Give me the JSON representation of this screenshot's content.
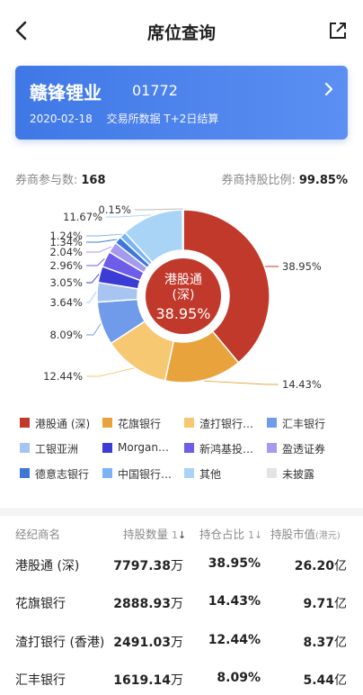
{
  "header": {
    "title": "席位查询"
  },
  "stock": {
    "name": "赣锋锂业",
    "code": "01772",
    "date": "2020-02-18",
    "note": "交易所数据 T+2日结算"
  },
  "stats": {
    "brokers_label": "券商参与数:",
    "brokers_value": "168",
    "ratio_label": "券商持股比例:",
    "ratio_value": "99.85%"
  },
  "chart_data": {
    "type": "pie",
    "title": "",
    "center_label": "港股通\n(深)",
    "center_value": "38.95%",
    "categories": [
      "港股通 (深)",
      "花旗银行",
      "渣打银行 (香港)",
      "汇丰银行",
      "工银亚洲",
      "Morgan…",
      "新鸿基投…",
      "盈透证券",
      "德意志银行",
      "中国银行…",
      "其他",
      "未披露"
    ],
    "values": [
      38.95,
      14.43,
      12.44,
      8.09,
      3.64,
      3.05,
      2.96,
      2.04,
      1.34,
      1.24,
      11.67,
      0.15
    ],
    "labels": [
      "38.95%",
      "14.43%",
      "12.44%",
      "8.09%",
      "3.64%",
      "3.05%",
      "2.96%",
      "2.04%",
      "1.34%",
      "1.24%",
      "11.67%",
      "0.15%"
    ],
    "colors": [
      "#c0392b",
      "#e8a33d",
      "#f5c871",
      "#6f9bea",
      "#a8c4f1",
      "#3b3bd6",
      "#6e5de8",
      "#a49af0",
      "#3d78d8",
      "#7db3f5",
      "#a9d4f6",
      "#e4e4e4"
    ]
  },
  "legend": {
    "items": [
      {
        "label": "港股通 (深)",
        "color": "#c0392b"
      },
      {
        "label": "花旗银行",
        "color": "#e8a33d"
      },
      {
        "label": "渣打银行…",
        "color": "#f5c871"
      },
      {
        "label": "汇丰银行",
        "color": "#6f9bea"
      },
      {
        "label": "工银亚洲",
        "color": "#a8c4f1"
      },
      {
        "label": "Morgan…",
        "color": "#3b3bd6"
      },
      {
        "label": "新鸿基投…",
        "color": "#6e5de8"
      },
      {
        "label": "盈透证券",
        "color": "#a49af0"
      },
      {
        "label": "德意志银行",
        "color": "#3d78d8"
      },
      {
        "label": "中国银行…",
        "color": "#7db3f5"
      },
      {
        "label": "其他",
        "color": "#a9d4f6"
      },
      {
        "label": "未披露",
        "color": "#e4e4e4"
      }
    ]
  },
  "table": {
    "headers": {
      "broker": "经纪商名",
      "shares": "持股数量",
      "ratio": "持仓占比",
      "value": "持股市值",
      "value_unit": "(港元)"
    },
    "rows": [
      {
        "name": "港股通 (深)",
        "shares": "7797.38",
        "shares_unit": "万",
        "ratio": "38.95%",
        "value": "26.20",
        "value_unit": "亿"
      },
      {
        "name": "花旗银行",
        "shares": "2888.93",
        "shares_unit": "万",
        "ratio": "14.43%",
        "value": "9.71",
        "value_unit": "亿"
      },
      {
        "name": "渣打银行 (香港)",
        "shares": "2491.03",
        "shares_unit": "万",
        "ratio": "12.44%",
        "value": "8.37",
        "value_unit": "亿"
      },
      {
        "name": "汇丰银行",
        "shares": "1619.14",
        "shares_unit": "万",
        "ratio": "8.09%",
        "value": "5.44",
        "value_unit": "亿"
      }
    ]
  },
  "icons": {
    "back": "back-arrow-icon",
    "share": "share-icon",
    "chevron": "chevron-right-icon"
  }
}
